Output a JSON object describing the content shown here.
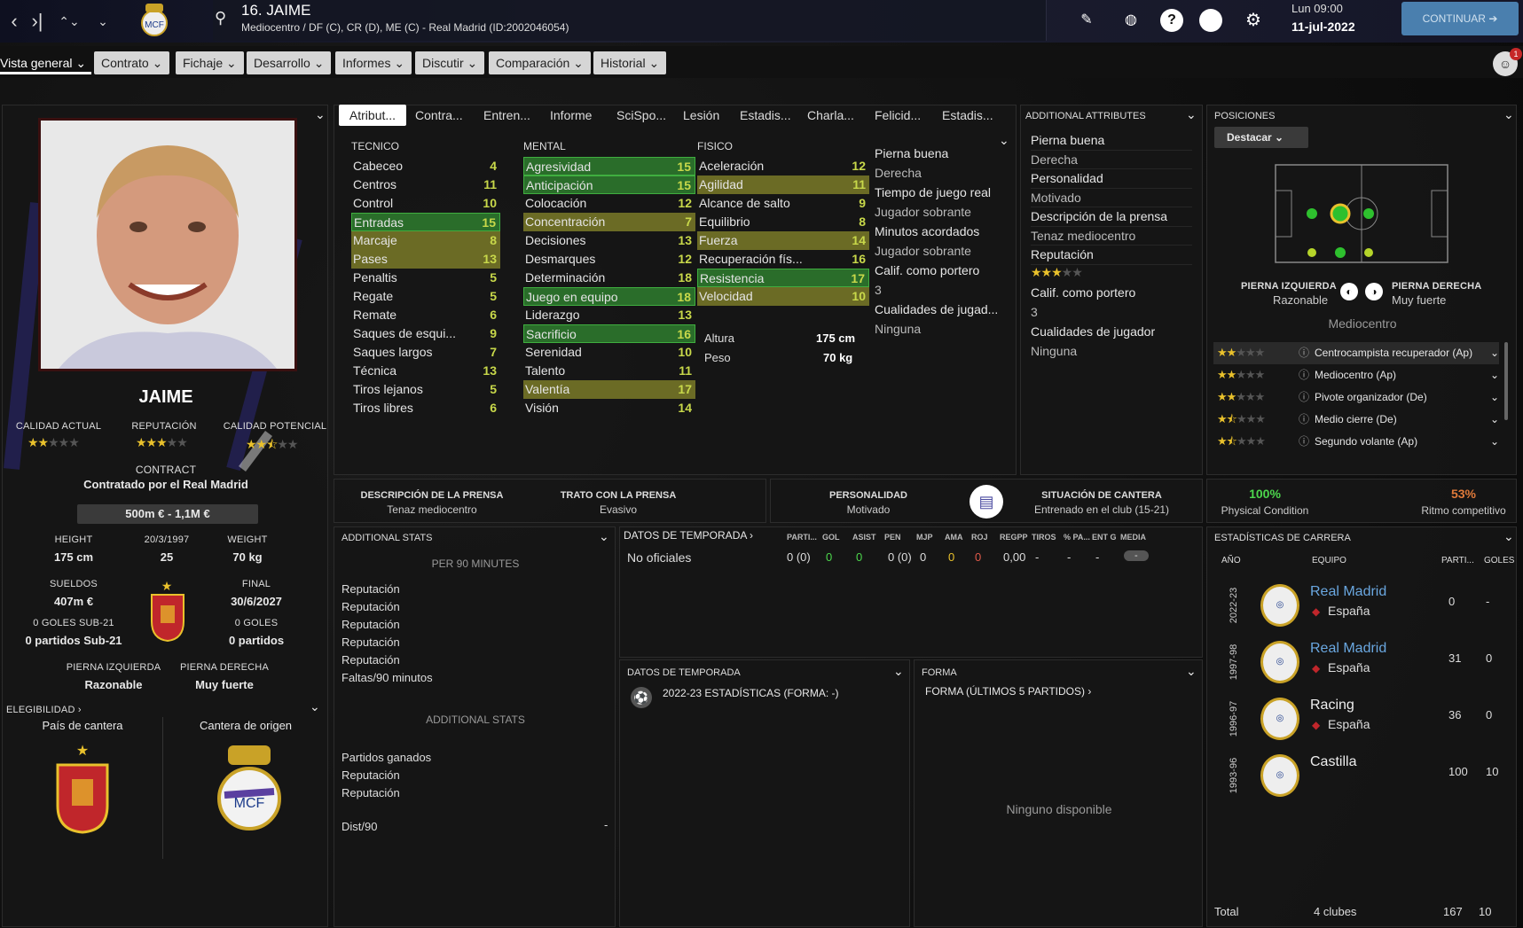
{
  "header": {
    "title": "16. JAIME",
    "subtitle": "Mediocentro / DF (C), CR (D), ME (C) - Real Madrid (ID:2002046054)",
    "day": "Lun 09:00",
    "date": "11-jul-2022",
    "continue": "CONTINUAR",
    "badge": "1"
  },
  "main_tabs": [
    "Vista general",
    "Contrato",
    "Fichaje",
    "Desarrollo",
    "Informes",
    "Discutir",
    "Comparación",
    "Historial"
  ],
  "sub_tabs": [
    "Atribut...",
    "Contra...",
    "Entren...",
    "Informe",
    "SciSpo...",
    "Lesión",
    "Estadis...",
    "Charla...",
    "Felicid...",
    "Estadis..."
  ],
  "profile": {
    "name": "JAIME",
    "ca_label": "CALIDAD ACTUAL",
    "rep_label": "REPUTACIÓN",
    "cp_label": "CALIDAD POTENCIAL",
    "ca_stars": 2,
    "rep_stars": 3,
    "cp_stars": 2.5,
    "contract_label": "CONTRACT",
    "contract_text": "Contratado por el Real Madrid",
    "value": "500m € - 1,1M €",
    "height_label": "HEIGHT",
    "height": "175 cm",
    "dob": "20/3/1997",
    "age": "25",
    "weight_label": "WEIGHT",
    "weight": "70 kg",
    "wages_label": "SUELDOS",
    "wages": "407m €",
    "final_label": "FINAL",
    "final": "30/6/2027",
    "u21_goals": "0 GOLES SUB-21",
    "u21_apps": "0 partidos Sub-21",
    "goals": "0 GOLES",
    "apps": "0 partidos",
    "left_foot_label": "PIERNA IZQUIERDA",
    "left_foot": "Razonable",
    "right_foot_label": "PIERNA DERECHA",
    "right_foot": "Muy fuerte",
    "elig": "ELEGIBILIDAD",
    "pais": "País de cantera",
    "cantera": "Cantera de origen"
  },
  "tecnico": {
    "title": "TECNICO",
    "items": [
      [
        "Cabeceo",
        "4",
        ""
      ],
      [
        "Centros",
        "11",
        ""
      ],
      [
        "Control",
        "10",
        ""
      ],
      [
        "Entradas",
        "15",
        "green"
      ],
      [
        "Marcaje",
        "8",
        "olive"
      ],
      [
        "Pases",
        "13",
        "olive"
      ],
      [
        "Penaltis",
        "5",
        ""
      ],
      [
        "Regate",
        "5",
        ""
      ],
      [
        "Remate",
        "6",
        ""
      ],
      [
        "Saques de esqui...",
        "9",
        ""
      ],
      [
        "Saques largos",
        "7",
        ""
      ],
      [
        "Técnica",
        "13",
        ""
      ],
      [
        "Tiros lejanos",
        "5",
        ""
      ],
      [
        "Tiros libres",
        "6",
        ""
      ]
    ]
  },
  "mental": {
    "title": "MENTAL",
    "items": [
      [
        "Agresividad",
        "15",
        "green"
      ],
      [
        "Anticipación",
        "15",
        "green"
      ],
      [
        "Colocación",
        "12",
        ""
      ],
      [
        "Concentración",
        "7",
        "olive"
      ],
      [
        "Decisiones",
        "13",
        ""
      ],
      [
        "Desmarques",
        "12",
        ""
      ],
      [
        "Determinación",
        "18",
        ""
      ],
      [
        "Juego en equipo",
        "18",
        "green"
      ],
      [
        "Liderazgo",
        "13",
        ""
      ],
      [
        "Sacrificio",
        "16",
        "green"
      ],
      [
        "Serenidad",
        "10",
        ""
      ],
      [
        "Talento",
        "11",
        ""
      ],
      [
        "Valentía",
        "17",
        "olive"
      ],
      [
        "Visión",
        "14",
        ""
      ]
    ]
  },
  "fisico": {
    "title": "FISICO",
    "items": [
      [
        "Aceleración",
        "12",
        ""
      ],
      [
        "Agilidad",
        "11",
        "olive"
      ],
      [
        "Alcance de salto",
        "9",
        ""
      ],
      [
        "Equilibrio",
        "8",
        ""
      ],
      [
        "Fuerza",
        "14",
        "olive"
      ],
      [
        "Recuperación fís...",
        "16",
        ""
      ],
      [
        "Resistencia",
        "17",
        "green"
      ],
      [
        "Velocidad",
        "10",
        "olive"
      ]
    ],
    "altura_label": "Altura",
    "altura": "175 cm",
    "peso_label": "Peso",
    "peso": "70 kg"
  },
  "col4": [
    "Pierna buena",
    "Derecha",
    "Tiempo de juego real",
    "Jugador sobrante",
    "Minutos acordados",
    "Jugador sobrante",
    "Calif. como portero",
    "3",
    "Cualidades de jugad...",
    "Ninguna"
  ],
  "additional_attributes": {
    "title": "ADDITIONAL ATTRIBUTES",
    "items": [
      "Pierna buena",
      "Derecha",
      "Personalidad",
      "Motivado",
      "Descripción de la prensa",
      "Tenaz mediocentro",
      "Reputación"
    ],
    "rep_stars": 3,
    "items2": [
      "Calif. como portero",
      "3",
      "Cualidades de jugador",
      "Ninguna"
    ]
  },
  "posiciones": {
    "title": "POSICIONES",
    "dropdown": "Destacar",
    "left_label": "PIERNA IZQUIERDA",
    "left": "Razonable",
    "right_label": "PIERNA DERECHA",
    "right": "Muy fuerte",
    "position": "Mediocentro",
    "roles": [
      {
        "name": "Centrocampista recuperador (Ap)",
        "stars": 2
      },
      {
        "name": "Mediocentro (Ap)",
        "stars": 2
      },
      {
        "name": "Pivote organizador (De)",
        "stars": 2
      },
      {
        "name": "Medio cierre (De)",
        "stars": 1.5
      },
      {
        "name": "Segundo volante (Ap)",
        "stars": 1.5
      }
    ]
  },
  "info_bar": {
    "prensa_label": "DESCRIPCIÓN DE LA PRENSA",
    "prensa": "Tenaz mediocentro",
    "trato_label": "TRATO CON LA PRENSA",
    "trato": "Evasivo",
    "pers_label": "PERSONALIDAD",
    "pers": "Motivado",
    "cantera_label": "SITUACIÓN DE CANTERA",
    "cantera": "Entrenado en el club (15-21)",
    "cond": "100%",
    "cond_label": "Physical Condition",
    "ritmo": "53%",
    "ritmo_label": "Ritmo competitivo"
  },
  "additional_stats": {
    "title": "ADDITIONAL STATS",
    "per90": "PER 90 MINUTES",
    "list1": [
      "Reputación",
      "Reputación",
      "Reputación",
      "Reputación",
      "Reputación",
      "Faltas/90 minutos"
    ],
    "sub": "ADDITIONAL STATS",
    "list2": [
      "Partidos ganados",
      "Reputación",
      "Reputación"
    ],
    "dist": "Dist/90",
    "dist_val": "-"
  },
  "season": {
    "title": "DATOS DE TEMPORADA",
    "headers": [
      "PARTI...",
      "GOL",
      "ASIST",
      "PEN",
      "MJP",
      "AMA",
      "ROJ",
      "REGPP",
      "TIROS",
      "% PA...",
      "ENT G",
      "MEDIA"
    ],
    "row_label": "No oficiales",
    "row": [
      "0 (0)",
      "0",
      "0",
      "0 (0)",
      "0",
      "0",
      "0",
      "0,00",
      "-",
      "-",
      "-",
      "-"
    ]
  },
  "season2": {
    "title": "DATOS DE TEMPORADA",
    "text": "2022-23 ESTADÍSTICAS (FORMA: -)"
  },
  "forma": {
    "title": "FORMA",
    "sub": "FORMA (ÚLTIMOS 5 PARTIDOS)",
    "empty": "Ninguno disponible"
  },
  "career": {
    "title": "ESTADÍSTICAS DE CARRERA",
    "col_year": "AÑO",
    "col_team": "EQUIPO",
    "col_apps": "PARTI...",
    "col_goals": "GOLES",
    "rows": [
      {
        "year": "2022-23",
        "team": "Real Madrid",
        "country": "España",
        "apps": "0",
        "goals": "-",
        "link": true
      },
      {
        "year": "1997-98",
        "team": "Real Madrid",
        "country": "España",
        "apps": "31",
        "goals": "0",
        "link": true
      },
      {
        "year": "1996-97",
        "team": "Racing",
        "country": "España",
        "apps": "36",
        "goals": "0",
        "link": false
      },
      {
        "year": "1993-96",
        "team": "Castilla",
        "country": "",
        "apps": "100",
        "goals": "10",
        "link": false
      }
    ],
    "total_label": "Total",
    "total_clubs": "4 clubes",
    "total_apps": "167",
    "total_goals": "10"
  },
  "colors": {
    "green": "#2a6d2a",
    "olive": "#6b6b25",
    "accent": "#4a7fae",
    "link": "#6aa7e0",
    "stat": "#d7e04a"
  }
}
